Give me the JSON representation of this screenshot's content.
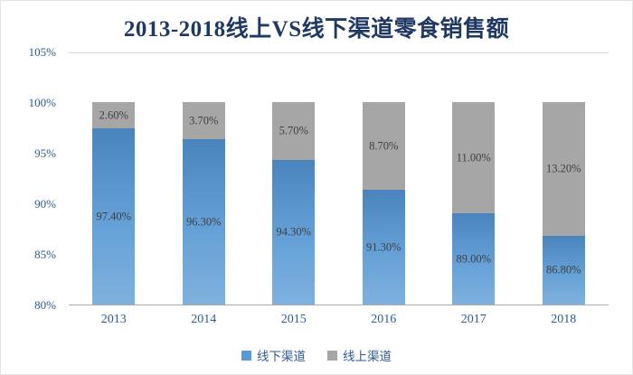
{
  "title": "2013-2018线上VS线下渠道零食销售额",
  "colors": {
    "title": "#1F3864",
    "axis_text": "#2E5B8F",
    "data_label": "#404040",
    "offline_bar": "#5B9BD5",
    "online_bar": "#A6A6A6"
  },
  "chart_data": {
    "type": "bar",
    "stacked": true,
    "title": "2013-2018线上VS线下渠道零食销售额",
    "categories": [
      "2013",
      "2014",
      "2015",
      "2016",
      "2017",
      "2018"
    ],
    "series": [
      {
        "name": "线下渠道",
        "color": "#5B9BD5",
        "values": [
          97.4,
          96.3,
          94.3,
          91.3,
          89.0,
          86.8
        ],
        "labels": [
          "97.40%",
          "96.30%",
          "94.30%",
          "91.30%",
          "89.00%",
          "86.80%"
        ]
      },
      {
        "name": "线上渠道",
        "color": "#A6A6A6",
        "values": [
          2.6,
          3.7,
          5.7,
          8.7,
          11.0,
          13.2
        ],
        "labels": [
          "2.60%",
          "3.70%",
          "5.70%",
          "8.70%",
          "11.00%",
          "13.20%"
        ]
      }
    ],
    "xlabel": "",
    "ylabel": "",
    "ylim": [
      80,
      105
    ],
    "ytick_step": 5,
    "ytick_labels": [
      "80%",
      "85%",
      "90%",
      "95%",
      "100%",
      "105%"
    ],
    "grid": false,
    "legend_position": "bottom"
  }
}
